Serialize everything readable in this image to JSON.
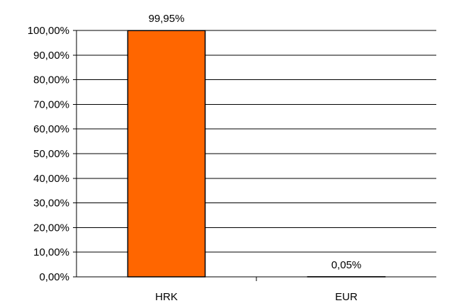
{
  "chart_data": {
    "type": "bar",
    "categories": [
      "HRK",
      "EUR"
    ],
    "values": [
      99.95,
      0.05
    ],
    "data_labels": [
      "99,95%",
      "0,05%"
    ],
    "yticks": [
      "0,00%",
      "10,00%",
      "20,00%",
      "30,00%",
      "40,00%",
      "50,00%",
      "60,00%",
      "70,00%",
      "80,00%",
      "90,00%",
      "100,00%"
    ],
    "ylim": [
      0,
      100
    ],
    "title": "",
    "xlabel": "",
    "ylabel": "",
    "grid": true,
    "legend": "none",
    "bar_color": "#ff6600",
    "bar_stroke": "#000000"
  }
}
